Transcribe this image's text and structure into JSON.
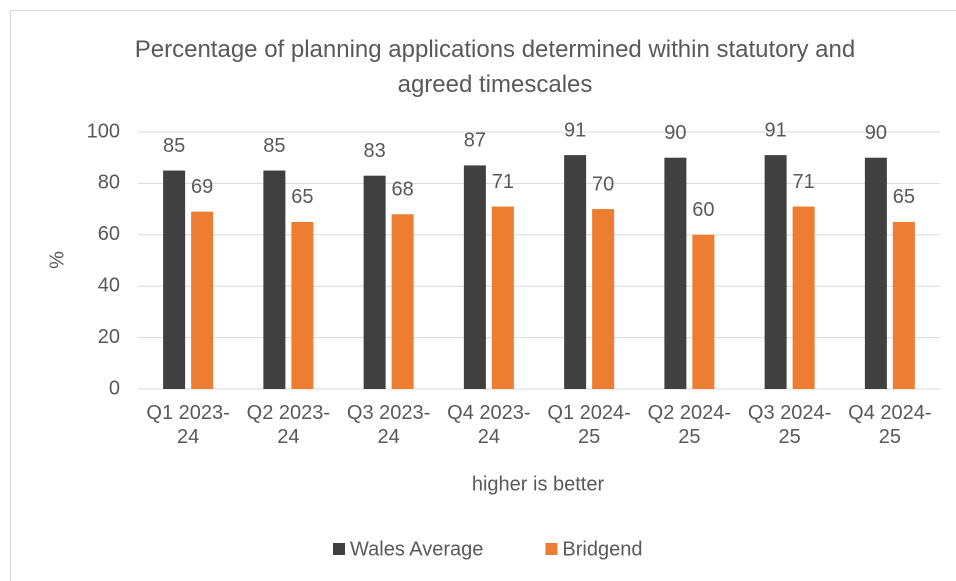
{
  "chart_data": {
    "type": "bar",
    "title": "Percentage of planning applications determined within statutory and agreed timescales",
    "x_label": "higher is better",
    "y_label": "%",
    "categories": [
      "Q1 2023-24",
      "Q2 2023-24",
      "Q3 2023-24",
      "Q4 2023-24",
      "Q1 2024-25",
      "Q2 2024-25",
      "Q3 2024-25",
      "Q4 2024-25"
    ],
    "series": [
      {
        "name": "Wales Average",
        "color": "#404040",
        "values": [
          85,
          85,
          83,
          87,
          91,
          90,
          91,
          90
        ]
      },
      {
        "name": "Bridgend",
        "color": "#ed7d31",
        "values": [
          69,
          65,
          68,
          71,
          70,
          60,
          71,
          65
        ]
      }
    ],
    "ylim": [
      0,
      100
    ],
    "yticks": [
      0,
      20,
      40,
      60,
      80,
      100
    ],
    "grid": true,
    "legend": "bottom"
  }
}
